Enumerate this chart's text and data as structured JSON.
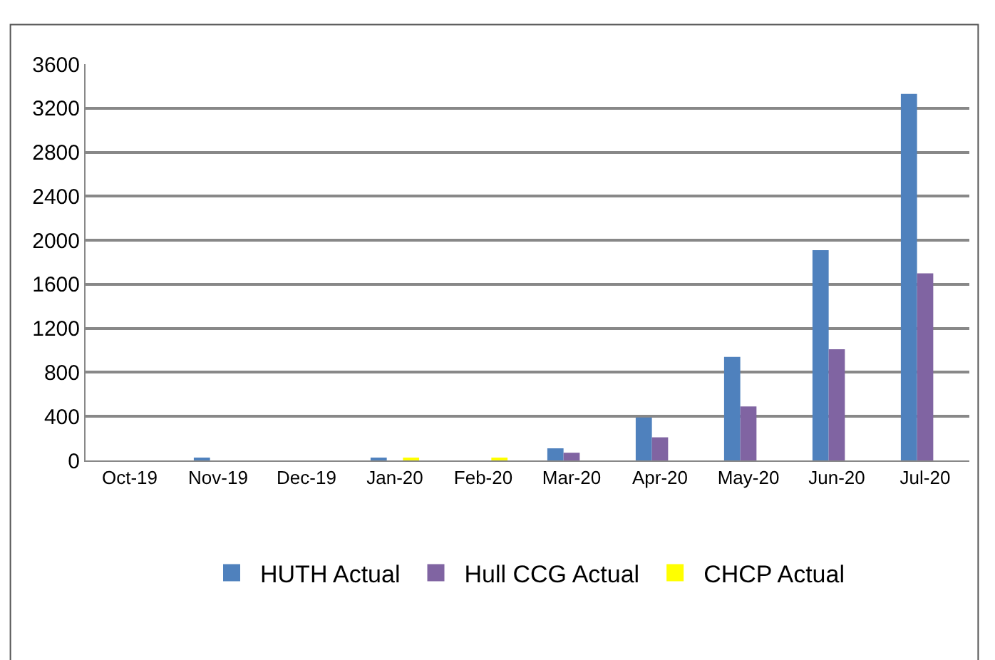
{
  "chart_data": {
    "type": "bar",
    "categories": [
      "Oct-19",
      "Nov-19",
      "Dec-19",
      "Jan-20",
      "Feb-20",
      "Mar-20",
      "Apr-20",
      "May-20",
      "Jun-20",
      "Jul-20"
    ],
    "series": [
      {
        "name": "HUTH Actual",
        "color": "#4f81bd",
        "values": [
          null,
          20,
          null,
          20,
          null,
          110,
          390,
          940,
          1910,
          3330
        ]
      },
      {
        "name": "Hull CCG Actual",
        "color": "#8064a2",
        "values": [
          null,
          null,
          null,
          null,
          null,
          70,
          210,
          490,
          1010,
          1700
        ]
      },
      {
        "name": "CHCP Actual",
        "color": "#ffff00",
        "values": [
          null,
          null,
          null,
          15,
          15,
          null,
          null,
          null,
          null,
          null
        ]
      }
    ],
    "ylim": [
      0,
      3600
    ],
    "yticks": [
      0,
      400,
      800,
      1200,
      1600,
      2000,
      2400,
      2800,
      3200,
      3600
    ],
    "grid": "y",
    "legend": "bottom"
  }
}
